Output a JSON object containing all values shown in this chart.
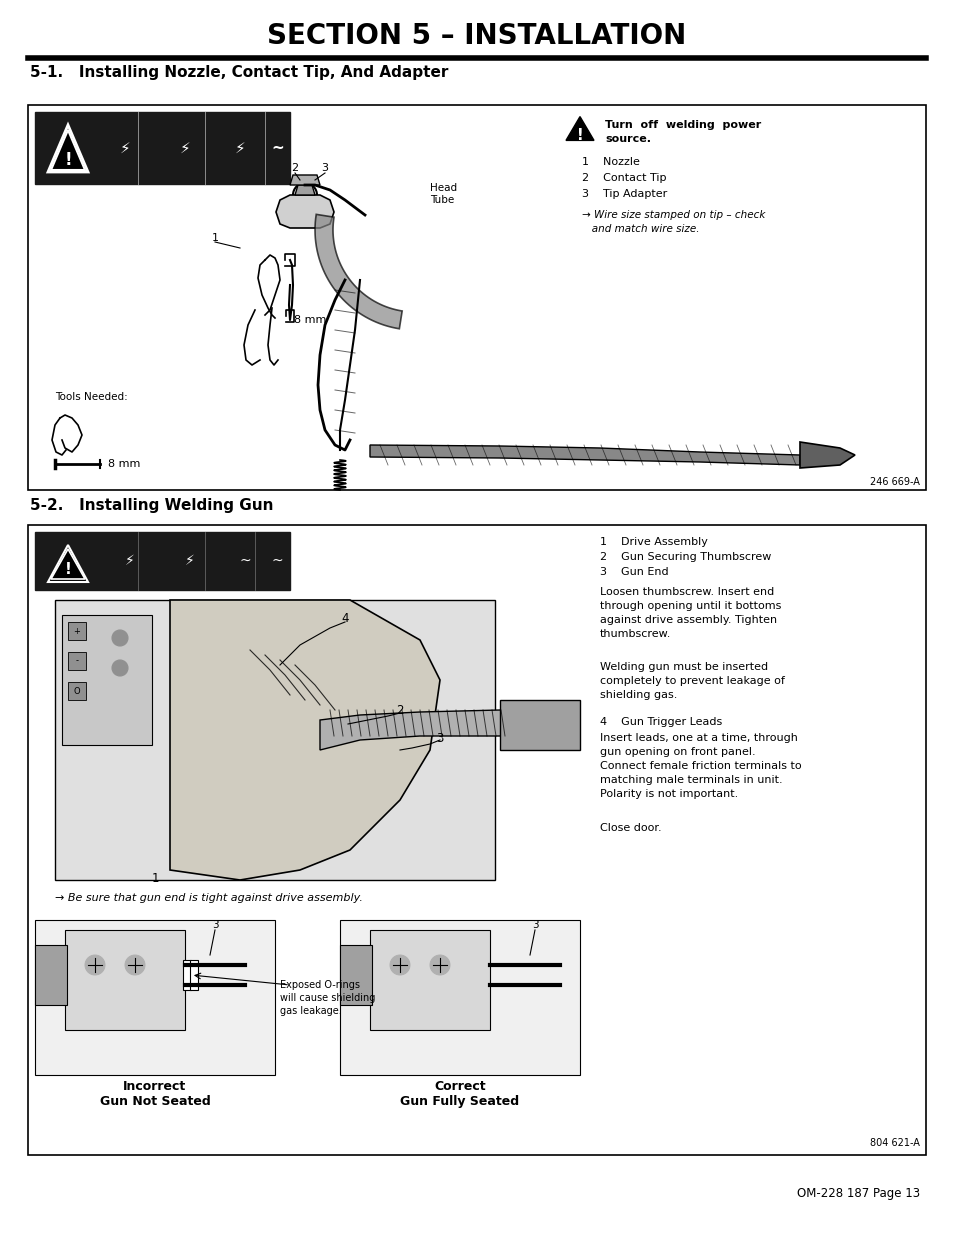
{
  "page_bg": "#ffffff",
  "title": "SECTION 5 – INSTALLATION",
  "section1_heading": "5-1.   Installing Nozzle, Contact Tip, And Adapter",
  "section2_heading": "5-2.   Installing Welding Gun",
  "footer_text": "OM-228 187 Page 13",
  "s1_ref": "246 669-A",
  "s2_ref": "804 621-A",
  "s1_warn_bold": "Turn  off  welding  power\nsource.",
  "s1_items": [
    "1    Nozzle",
    "2    Contact Tip",
    "3    Tip Adapter"
  ],
  "s1_note": "→ Wire size stamped on tip – check\n   and match wire size.",
  "s1_tools": "Tools Needed:",
  "s1_8mm": "8 mm",
  "s2_items_list": [
    "1    Drive Assembly",
    "2    Gun Securing Thumbscrew",
    "3    Gun End"
  ],
  "s2_para1": "Loosen thumbscrew. Insert end\nthrough opening until it bottoms\nagainst drive assembly. Tighten\nthumbscrew.",
  "s2_para2": "Welding gun must be inserted\ncompletely to prevent leakage of\nshielding gas.",
  "s2_item4": "4    Gun Trigger Leads",
  "s2_para3": "Insert leads, one at a time, through\ngun opening on front panel.\nConnect female friction terminals to\nmatching male terminals in unit.\nPolarity is not important.",
  "s2_close": "Close door.",
  "s2_note": "→ Be sure that gun end is tight against drive assembly.",
  "s2_incorrect": "Incorrect\nGun Not Seated",
  "s2_correct": "Correct\nGun Fully Seated",
  "s2_exposed": "Exposed O-rings\nwill cause shielding\ngas leakage.",
  "icon_box_fill": "#1a1a1a",
  "diagram_fill": "#f5f5f5",
  "diagram_gray": "#c8c8c8"
}
